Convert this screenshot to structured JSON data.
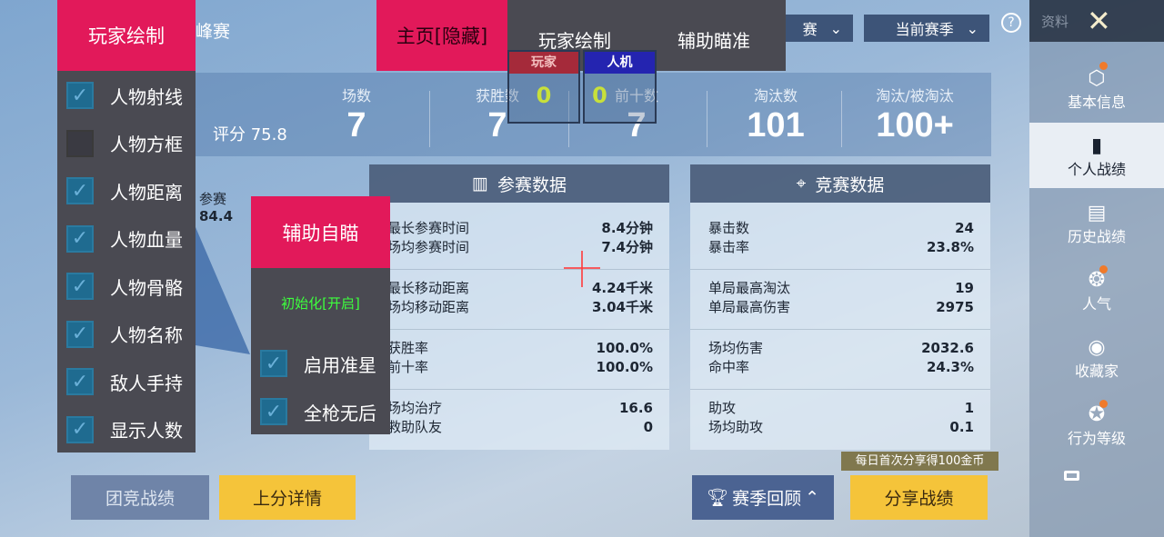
{
  "top": {
    "mode_dropdown": "赛",
    "season_dropdown": "当前赛季",
    "help_icon": "question-circle-icon",
    "title": "资料",
    "close_icon": "x-icon",
    "partial_title": "峰赛"
  },
  "stats": {
    "rating_label": "评分 75.8",
    "items": [
      {
        "label": "场数",
        "value": "7"
      },
      {
        "label": "获胜数",
        "value": "7"
      },
      {
        "label": "前十数",
        "value": "7"
      },
      {
        "label": "淘汰数",
        "value": "101"
      },
      {
        "label": "淘汰/被淘汰",
        "value": "100+"
      }
    ]
  },
  "radar": {
    "label": "参赛",
    "value": "84.4"
  },
  "participation": {
    "title": "参赛数据",
    "groups": [
      [
        [
          "最长参赛时间",
          "8.4分钟"
        ],
        [
          "场均参赛时间",
          "7.4分钟"
        ]
      ],
      [
        [
          "最长移动距离",
          "4.24千米"
        ],
        [
          "场均移动距离",
          "3.04千米"
        ]
      ],
      [
        [
          "获胜率",
          "100.0%"
        ],
        [
          "前十率",
          "100.0%"
        ]
      ],
      [
        [
          "场均治疗",
          "16.6"
        ],
        [
          "救助队友",
          "0"
        ]
      ]
    ]
  },
  "competition": {
    "title": "竞赛数据",
    "groups": [
      [
        [
          "暴击数",
          "24"
        ],
        [
          "暴击率",
          "23.8%"
        ]
      ],
      [
        [
          "单局最高淘汰",
          "19"
        ],
        [
          "单局最高伤害",
          "2975"
        ]
      ],
      [
        [
          "场均伤害",
          "2032.6"
        ],
        [
          "命中率",
          "24.3%"
        ]
      ],
      [
        [
          "助攻",
          "1"
        ],
        [
          "场均助攻",
          "0.1"
        ]
      ]
    ]
  },
  "sidebar": {
    "items": [
      "基本信息",
      "个人战绩",
      "历史战绩",
      "人气",
      "收藏家",
      "行为等级"
    ],
    "selected": "个人战绩"
  },
  "buttons": {
    "team": "团竞战绩",
    "rank": "上分详情",
    "review": "赛季回顾",
    "share": "分享战绩",
    "share_tip": "每日首次分享得100金币"
  },
  "cheat": {
    "player_draw": "玩家绘制",
    "home_hide": "主页[隐藏]",
    "tab_draw": "玩家绘制",
    "tab_aim": "辅助瞄准",
    "player_label": "玩家",
    "player_count": "0",
    "bot_label": "人机",
    "bot_count": "0",
    "options": [
      {
        "label": "人物射线",
        "on": true
      },
      {
        "label": "人物方框",
        "on": false
      },
      {
        "label": "人物距离",
        "on": true
      },
      {
        "label": "人物血量",
        "on": true
      },
      {
        "label": "人物骨骼",
        "on": true
      },
      {
        "label": "人物名称",
        "on": true
      },
      {
        "label": "敌人手持",
        "on": true
      },
      {
        "label": "显示人数",
        "on": true
      }
    ],
    "aim_title": "辅助自瞄",
    "aim_init": "初始化[开启]",
    "aim_options": [
      {
        "label": "启用准星",
        "on": true
      },
      {
        "label": "全枪无后",
        "on": true
      }
    ]
  },
  "colors": {
    "accent_pink": "#e2195a",
    "menu_bg": "#4a4a52",
    "yellow": "#f5c43a",
    "init_green": "#3dff3d"
  }
}
